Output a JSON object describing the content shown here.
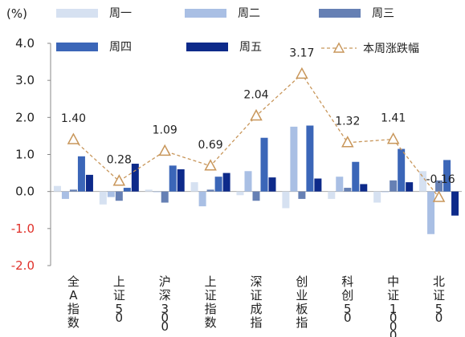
{
  "chart_data": {
    "type": "bar",
    "unit": "(%)",
    "categories": [
      "全A指数",
      "上证50",
      "沪深300",
      "上证指数",
      "深证成指",
      "创业板指",
      "科创50",
      "中证1000",
      "北证50"
    ],
    "series": [
      {
        "name": "周一",
        "color": "#d6e1f1",
        "values": [
          0.15,
          -0.35,
          0.05,
          0.25,
          -0.1,
          -0.45,
          -0.2,
          -0.3,
          0.55
        ]
      },
      {
        "name": "周二",
        "color": "#a9bfe4",
        "values": [
          -0.2,
          -0.15,
          0.0,
          -0.4,
          0.55,
          1.75,
          0.4,
          0.0,
          -1.15
        ]
      },
      {
        "name": "周三",
        "color": "#6680b4",
        "values": [
          0.05,
          -0.25,
          -0.3,
          0.05,
          -0.25,
          -0.2,
          0.1,
          0.3,
          0.3
        ]
      },
      {
        "name": "周四",
        "color": "#3b66b8",
        "values": [
          0.95,
          0.1,
          0.7,
          0.4,
          1.45,
          1.78,
          0.8,
          1.15,
          0.85
        ]
      },
      {
        "name": "周五",
        "color": "#0d2a8a",
        "values": [
          0.45,
          0.75,
          0.6,
          0.5,
          0.38,
          0.35,
          0.2,
          0.25,
          -0.65
        ]
      }
    ],
    "line": {
      "name": "本周涨跌幅",
      "color": "#c8965a",
      "values": [
        1.4,
        0.28,
        1.09,
        0.69,
        2.04,
        3.17,
        1.32,
        1.41,
        -0.16
      ]
    },
    "data_labels": [
      "1.40",
      "0.28",
      "1.09",
      "0.69",
      "2.04",
      "3.17",
      "1.32",
      "1.41",
      "-0.16"
    ],
    "ylim": [
      -2.0,
      4.0
    ],
    "yticks": [
      "4.0",
      "3.0",
      "2.0",
      "1.0",
      "0.0",
      "-1.0",
      "-2.0"
    ],
    "ytick_values": [
      4,
      3,
      2,
      1,
      0,
      -1,
      -2
    ],
    "legend_position": "top",
    "grid": false
  }
}
